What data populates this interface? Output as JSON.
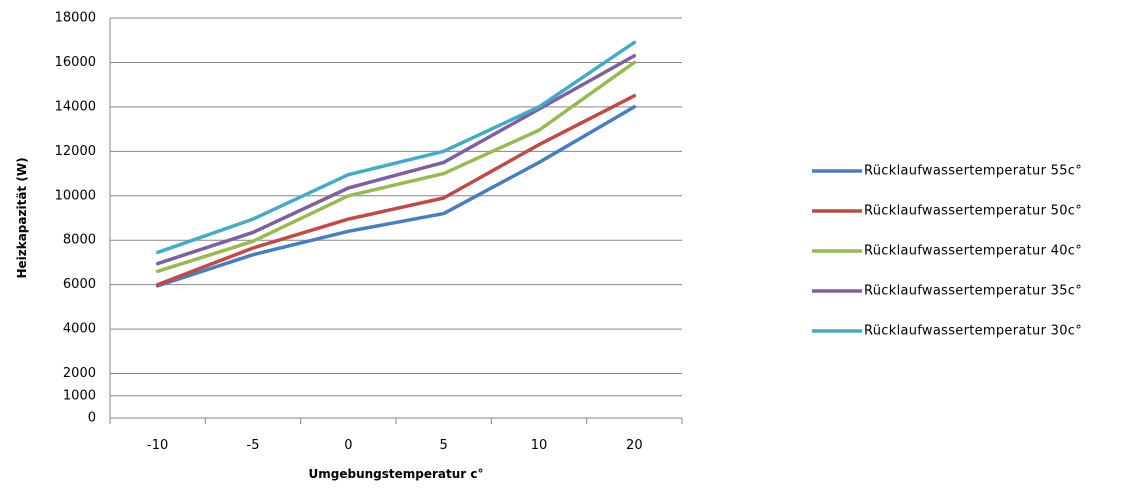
{
  "chart_data": {
    "type": "line",
    "title": "",
    "xlabel": "Umgebungstemperatur c°",
    "ylabel": "Heizkapazität  (W)",
    "categories": [
      "-10",
      "-5",
      "0",
      "5",
      "10",
      "20"
    ],
    "ylim": [
      0,
      18000
    ],
    "yticks": [
      0,
      1000,
      2000,
      4000,
      6000,
      8000,
      10000,
      12000,
      14000,
      16000,
      18000
    ],
    "grid": "horizontal",
    "legend_position": "right",
    "series": [
      {
        "name": "Rücklaufwassertemperatur 55c°",
        "color": "#4a7ebb",
        "values": [
          5950,
          7350,
          8400,
          9200,
          11500,
          14000
        ]
      },
      {
        "name": "Rücklaufwassertemperatur 50c°",
        "color": "#be4b48",
        "values": [
          6000,
          7650,
          8950,
          9900,
          12300,
          14500
        ]
      },
      {
        "name": "Rücklaufwassertemperatur 40c°",
        "color": "#98b954",
        "values": [
          6600,
          7950,
          10000,
          11000,
          12950,
          16000
        ]
      },
      {
        "name": "Rücklaufwassertemperatur 35c°",
        "color": "#7d60a0",
        "values": [
          6950,
          8350,
          10350,
          11500,
          13900,
          16300
        ]
      },
      {
        "name": "Rücklaufwassertemperatur 30c°",
        "color": "#46aac4",
        "values": [
          7450,
          8950,
          10950,
          12000,
          14000,
          16900
        ]
      }
    ]
  }
}
